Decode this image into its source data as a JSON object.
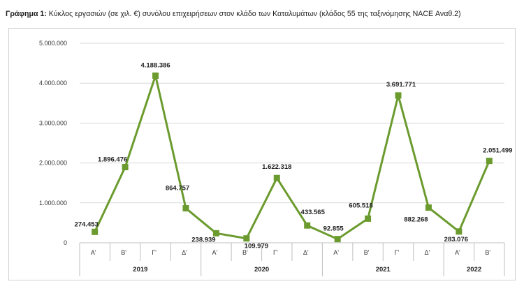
{
  "title": {
    "prefix": "Γράφημα 1:",
    "text": " Κύκλος εργασιών (σε χιλ. €) συνόλου επιχειρήσεων στον κλάδο των Καταλυμάτων (κλάδος 55 της ταξινόμησης NACE Αναθ.2)"
  },
  "chart_data": {
    "type": "line",
    "color": "#6b9b2e",
    "ylim": [
      0,
      5000000
    ],
    "yticks": [
      "0",
      "1.000.000",
      "2.000.000",
      "3.000.000",
      "4.000.000",
      "5.000.000"
    ],
    "yticks_values": [
      0,
      1000000,
      2000000,
      3000000,
      4000000,
      5000000
    ],
    "grid": true,
    "legend": "none",
    "categories": [
      "Α'",
      "Β'",
      "Γ'",
      "Δ'",
      "Α'",
      "Β'",
      "Γ'",
      "Δ'",
      "Α'",
      "Β'",
      "Γ'",
      "Δ'",
      "Α'",
      "Β'"
    ],
    "years": [
      {
        "label": "2019",
        "count": 4
      },
      {
        "label": "2020",
        "count": 4
      },
      {
        "label": "2021",
        "count": 4
      },
      {
        "label": "2022",
        "count": 2
      }
    ],
    "values": [
      274453,
      1896476,
      4188386,
      864757,
      238939,
      109979,
      1622318,
      433565,
      92855,
      605518,
      3691771,
      882268,
      283076,
      2051499
    ],
    "labels": [
      "274.453",
      "1.896.476",
      "4.188.386",
      "864.757",
      "238.939",
      "109.979",
      "1.622.318",
      "433.565",
      "92.855",
      "605.518",
      "3.691.771",
      "882.268",
      "283.076",
      "2.051.499"
    ]
  }
}
